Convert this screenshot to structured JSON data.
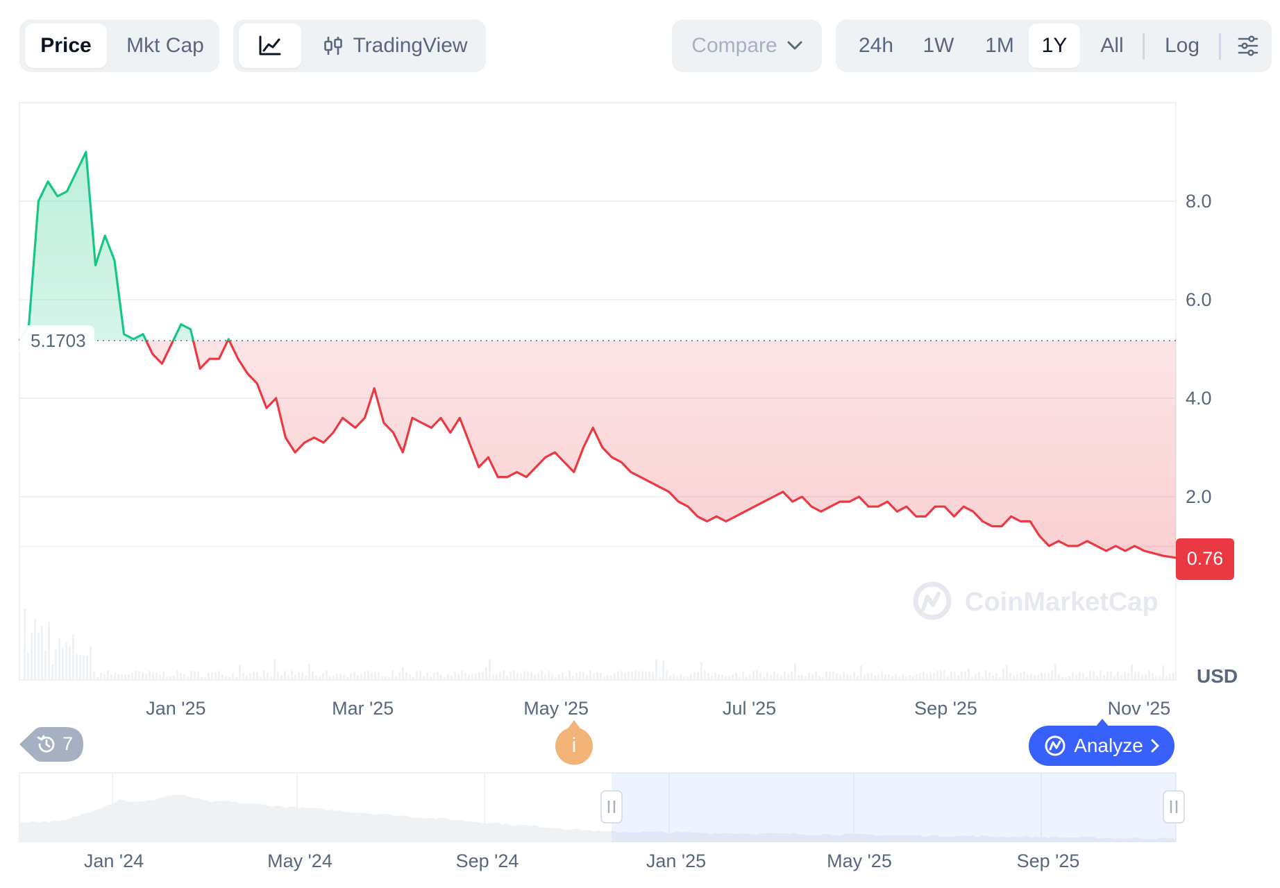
{
  "toolbar": {
    "metric_tabs": [
      {
        "label": "Price",
        "active": true
      },
      {
        "label": "Mkt Cap",
        "active": false
      }
    ],
    "chart_type": {
      "line_icon": "line-chart-icon",
      "tradingview_icon": "candlestick-icon",
      "tradingview_label": "TradingView"
    },
    "compare": {
      "label": "Compare",
      "icon": "chevron-down-icon"
    },
    "ranges": [
      {
        "label": "24h"
      },
      {
        "label": "1W"
      },
      {
        "label": "1M"
      },
      {
        "label": "1Y",
        "active": true
      },
      {
        "label": "All"
      }
    ],
    "log_label": "Log",
    "settings_icon": "sliders-icon"
  },
  "chart": {
    "open_price_label": "5.1703",
    "current_price_label": "0.76",
    "currency": "USD",
    "watermark": "CoinMarketCap",
    "history_count": "7",
    "info_marker": "i",
    "analyze_label": "Analyze",
    "colors": {
      "up": "#16c784",
      "down": "#ea3943",
      "accent": "#3861fb"
    }
  },
  "chart_data": {
    "type": "area",
    "ylim": [
      0,
      10
    ],
    "yticks": [
      "8.0",
      "6.0",
      "4.0",
      "2.0"
    ],
    "xticks": [
      "Jan '25",
      "Mar '25",
      "May '25",
      "Jul '25",
      "Sep '25",
      "Nov '25"
    ],
    "reference_value": 5.1703,
    "last_value": 0.76,
    "series": [
      {
        "x": [
          "2024-11-17",
          "2024-11-20",
          "2024-11-23",
          "2024-11-26",
          "2024-11-29",
          "2024-12-02",
          "2024-12-05",
          "2024-12-08",
          "2024-12-11",
          "2024-12-14",
          "2024-12-17",
          "2024-12-20",
          "2024-12-23",
          "2024-12-26",
          "2024-12-29",
          "2025-01-01",
          "2025-01-04",
          "2025-01-07",
          "2025-01-10",
          "2025-01-13",
          "2025-01-16",
          "2025-01-19",
          "2025-01-22",
          "2025-01-25",
          "2025-01-28",
          "2025-01-31",
          "2025-02-03",
          "2025-02-06",
          "2025-02-09",
          "2025-02-12",
          "2025-02-15",
          "2025-02-18",
          "2025-02-21",
          "2025-02-24",
          "2025-02-27",
          "2025-03-03",
          "2025-03-06",
          "2025-03-09",
          "2025-03-12",
          "2025-03-15",
          "2025-03-18",
          "2025-03-21",
          "2025-03-24",
          "2025-03-27",
          "2025-03-30",
          "2025-04-02",
          "2025-04-05",
          "2025-04-08",
          "2025-04-11",
          "2025-04-14",
          "2025-04-17",
          "2025-04-20",
          "2025-04-23",
          "2025-04-26",
          "2025-04-29",
          "2025-05-02",
          "2025-05-05",
          "2025-05-08",
          "2025-05-11",
          "2025-05-14",
          "2025-05-17",
          "2025-05-20",
          "2025-05-23",
          "2025-05-26",
          "2025-05-29",
          "2025-06-01",
          "2025-06-04",
          "2025-06-07",
          "2025-06-10",
          "2025-06-13",
          "2025-06-16",
          "2025-06-19",
          "2025-06-22",
          "2025-06-25",
          "2025-06-28",
          "2025-07-01",
          "2025-07-04",
          "2025-07-07",
          "2025-07-10",
          "2025-07-13",
          "2025-07-16",
          "2025-07-19",
          "2025-07-22",
          "2025-07-25",
          "2025-07-28",
          "2025-07-31",
          "2025-08-03",
          "2025-08-06",
          "2025-08-09",
          "2025-08-12",
          "2025-08-15",
          "2025-08-18",
          "2025-08-21",
          "2025-08-24",
          "2025-08-27",
          "2025-08-30",
          "2025-09-02",
          "2025-09-05",
          "2025-09-08",
          "2025-09-11",
          "2025-09-14",
          "2025-09-17",
          "2025-09-20",
          "2025-09-23",
          "2025-09-26",
          "2025-09-29",
          "2025-10-02",
          "2025-10-05",
          "2025-10-08",
          "2025-10-11",
          "2025-10-14",
          "2025-10-17",
          "2025-10-20",
          "2025-10-23",
          "2025-10-26",
          "2025-10-29",
          "2025-11-01",
          "2025-11-04",
          "2025-11-07",
          "2025-11-10",
          "2025-11-13",
          "2025-11-17"
        ],
        "values": [
          5.17,
          5.5,
          8.0,
          8.4,
          8.1,
          8.2,
          8.6,
          9.0,
          6.7,
          7.3,
          6.8,
          5.3,
          5.2,
          5.3,
          4.9,
          4.7,
          5.1,
          5.5,
          5.4,
          4.6,
          4.8,
          4.8,
          5.2,
          4.8,
          4.5,
          4.3,
          3.8,
          4.0,
          3.2,
          2.9,
          3.1,
          3.2,
          3.1,
          3.3,
          3.6,
          3.4,
          3.6,
          4.2,
          3.5,
          3.3,
          2.9,
          3.6,
          3.5,
          3.4,
          3.6,
          3.3,
          3.6,
          3.1,
          2.6,
          2.8,
          2.4,
          2.4,
          2.5,
          2.4,
          2.6,
          2.8,
          2.9,
          2.7,
          2.5,
          3.0,
          3.4,
          3.0,
          2.8,
          2.7,
          2.5,
          2.4,
          2.3,
          2.2,
          2.1,
          1.9,
          1.8,
          1.6,
          1.5,
          1.6,
          1.5,
          1.6,
          1.7,
          1.8,
          1.9,
          2.0,
          2.1,
          1.9,
          2.0,
          1.8,
          1.7,
          1.8,
          1.9,
          1.9,
          2.0,
          1.8,
          1.8,
          1.9,
          1.7,
          1.8,
          1.6,
          1.6,
          1.8,
          1.8,
          1.6,
          1.8,
          1.7,
          1.5,
          1.4,
          1.4,
          1.6,
          1.5,
          1.5,
          1.2,
          1.0,
          1.1,
          1.0,
          1.0,
          1.1,
          1.0,
          0.9,
          1.0,
          0.9,
          1.0,
          0.9,
          0.85,
          0.8,
          0.76
        ]
      }
    ]
  },
  "navigator": {
    "labels": [
      "Jan '24",
      "May '24",
      "Sep '24",
      "Jan '25",
      "May '25",
      "Sep '25"
    ]
  }
}
